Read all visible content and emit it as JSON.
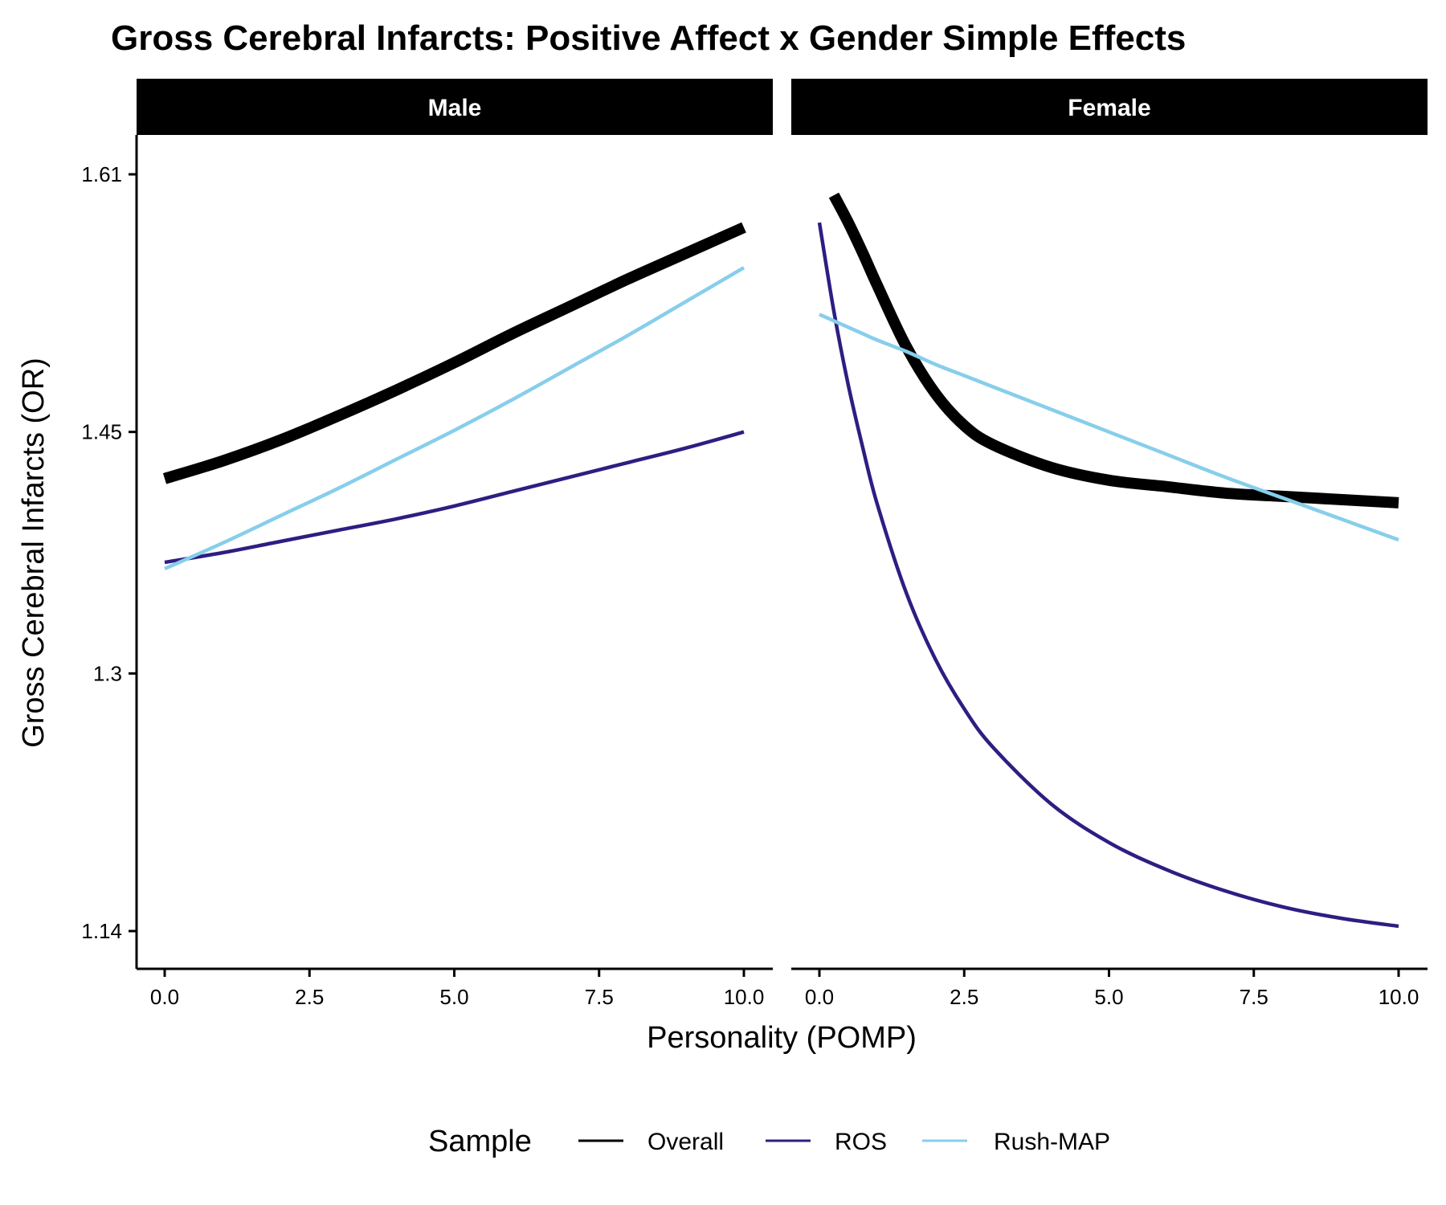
{
  "chart_data": {
    "type": "line",
    "title": "Gross Cerebral Infarcts: Positive Affect x Gender Simple Effects",
    "xlabel": "Personality (POMP)",
    "ylabel": "Gross Cerebral Infarcts (OR)",
    "xlim": [
      0,
      10
    ],
    "ylim": [
      1.14,
      1.61
    ],
    "x_ticks": [
      "0.0",
      "2.5",
      "5.0",
      "7.5",
      "10.0"
    ],
    "y_ticks": [
      "1.14",
      "1.3",
      "1.45",
      "1.61"
    ],
    "grid": false,
    "legend_title": "Sample",
    "legend_position": "bottom",
    "legend": [
      {
        "name": "Overall",
        "color": "#000000"
      },
      {
        "name": "ROS",
        "color": "#2D1E82"
      },
      {
        "name": "Rush-MAP",
        "color": "#87CEEB"
      }
    ],
    "panels": [
      {
        "label": "Male",
        "x": [
          0,
          1,
          2,
          3,
          4,
          5,
          6,
          7,
          8,
          9,
          10
        ],
        "series": [
          {
            "name": "Overall",
            "values": [
              1.421,
              1.432,
              1.445,
              1.46,
              1.476,
              1.493,
              1.511,
              1.528,
              1.545,
              1.561,
              1.577
            ]
          },
          {
            "name": "ROS",
            "values": [
              1.369,
              1.375,
              1.382,
              1.389,
              1.396,
              1.404,
              1.413,
              1.422,
              1.431,
              1.44,
              1.45
            ]
          },
          {
            "name": "Rush-MAP",
            "values": [
              1.365,
              1.381,
              1.398,
              1.415,
              1.433,
              1.451,
              1.47,
              1.49,
              1.51,
              1.531,
              1.552
            ]
          }
        ]
      },
      {
        "label": "Female",
        "x": [
          0,
          0.25,
          0.5,
          0.75,
          1,
          1.5,
          2,
          2.5,
          3,
          4,
          5,
          6,
          7,
          8,
          9,
          10
        ],
        "series": [
          {
            "name": "Overall",
            "values": [
              null,
              1.597,
              1.58,
              1.561,
              1.541,
              1.503,
              1.474,
              1.454,
              1.442,
              1.428,
              1.42,
              1.416,
              1.412,
              1.41,
              1.408,
              1.406
            ]
          },
          {
            "name": "ROS",
            "values": [
              1.58,
              1.525,
              1.479,
              1.44,
              1.405,
              1.35,
              1.309,
              1.278,
              1.254,
              1.219,
              1.195,
              1.178,
              1.165,
              1.155,
              1.148,
              1.143
            ]
          },
          {
            "name": "Rush-MAP",
            "values": [
              1.523,
              1.519,
              1.515,
              1.511,
              1.507,
              1.5,
              1.492,
              1.485,
              1.478,
              1.464,
              1.45,
              1.436,
              1.422,
              1.409,
              1.396,
              1.383
            ]
          }
        ]
      }
    ]
  }
}
